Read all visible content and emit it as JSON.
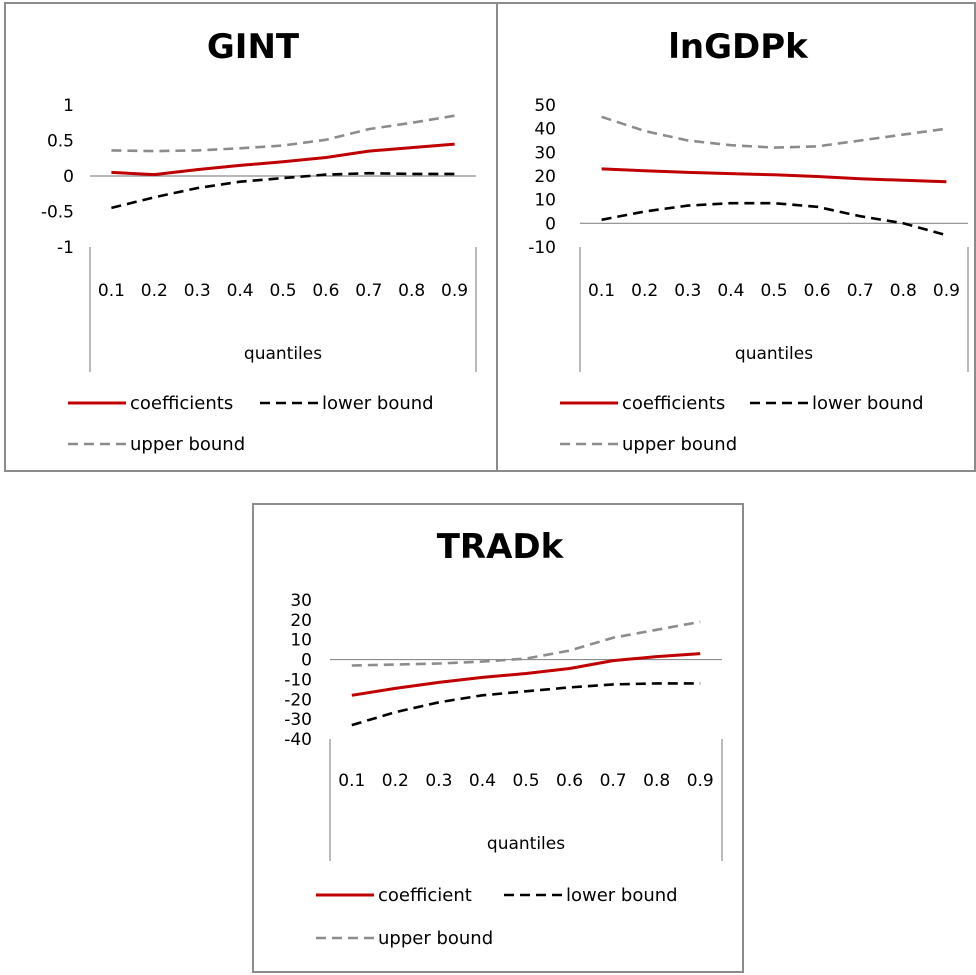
{
  "colors": {
    "coefficients": "#c00000",
    "lower_bound": "#000000",
    "upper_bound": "#8c8c8c",
    "axis": "#8c8c8c"
  },
  "chart_data": [
    {
      "type": "line",
      "title": "GINT",
      "xlabel": "quantiles",
      "ylabel": "",
      "x": [
        "0.1",
        "0.2",
        "0.3",
        "0.4",
        "0.5",
        "0.6",
        "0.7",
        "0.8",
        "0.9"
      ],
      "ylim": [
        -1,
        1
      ],
      "yticks": [
        "1",
        "0.5",
        "0",
        "-0.5",
        "-1"
      ],
      "ytick_values": [
        1,
        0.5,
        0,
        -0.5,
        -1
      ],
      "legend_position": "bottom",
      "series": [
        {
          "name": "coefficients",
          "style": "solid",
          "values": [
            0.05,
            0.02,
            0.09,
            0.15,
            0.2,
            0.26,
            0.35,
            0.4,
            0.45
          ]
        },
        {
          "name": "lower bound",
          "style": "dashed",
          "values": [
            -0.45,
            -0.3,
            -0.17,
            -0.08,
            -0.03,
            0.02,
            0.04,
            0.03,
            0.03
          ]
        },
        {
          "name": "upper bound",
          "style": "dashed",
          "values": [
            0.36,
            0.35,
            0.36,
            0.39,
            0.43,
            0.51,
            0.66,
            0.75,
            0.85
          ]
        }
      ]
    },
    {
      "type": "line",
      "title": "lnGDPk",
      "xlabel": "quantiles",
      "ylabel": "",
      "x": [
        "0.1",
        "0.2",
        "0.3",
        "0.4",
        "0.5",
        "0.6",
        "0.7",
        "0.8",
        "0.9"
      ],
      "ylim": [
        -10,
        50
      ],
      "yticks": [
        "50",
        "40",
        "30",
        "20",
        "10",
        "0",
        "-10"
      ],
      "ytick_values": [
        50,
        40,
        30,
        20,
        10,
        0,
        -10
      ],
      "legend_position": "bottom",
      "series": [
        {
          "name": "coefficients",
          "style": "solid",
          "values": [
            23,
            22.2,
            21.5,
            21,
            20.5,
            19.8,
            18.8,
            18.2,
            17.6
          ]
        },
        {
          "name": "lower bound",
          "style": "dashed",
          "values": [
            1.5,
            5,
            7.5,
            8.5,
            8.5,
            7,
            3,
            0,
            -5
          ]
        },
        {
          "name": "upper bound",
          "style": "dashed",
          "values": [
            45,
            39,
            35,
            33,
            32,
            32.5,
            35,
            37.5,
            40
          ]
        }
      ]
    },
    {
      "type": "line",
      "title": "TRADk",
      "xlabel": "quantiles",
      "ylabel": "",
      "x": [
        "0.1",
        "0.2",
        "0.3",
        "0.4",
        "0.5",
        "0.6",
        "0.7",
        "0.8",
        "0.9"
      ],
      "ylim": [
        -40,
        30
      ],
      "yticks": [
        "30",
        "20",
        "10",
        "0",
        "-10",
        "-20",
        "-30",
        "-40"
      ],
      "ytick_values": [
        30,
        20,
        10,
        0,
        -10,
        -20,
        -30,
        -40
      ],
      "legend_position": "bottom",
      "series": [
        {
          "name": "coefficient",
          "style": "solid",
          "values": [
            -18,
            -14.5,
            -11.5,
            -9,
            -7,
            -4.5,
            -0.5,
            1.5,
            3
          ]
        },
        {
          "name": "lower bound",
          "style": "dashed",
          "values": [
            -33,
            -26.5,
            -21.5,
            -18,
            -16,
            -14,
            -12.5,
            -12,
            -12
          ]
        },
        {
          "name": "upper bound",
          "style": "dashed",
          "values": [
            -3,
            -2.5,
            -2,
            -1,
            0.5,
            4.5,
            11,
            15,
            19
          ]
        }
      ]
    }
  ]
}
